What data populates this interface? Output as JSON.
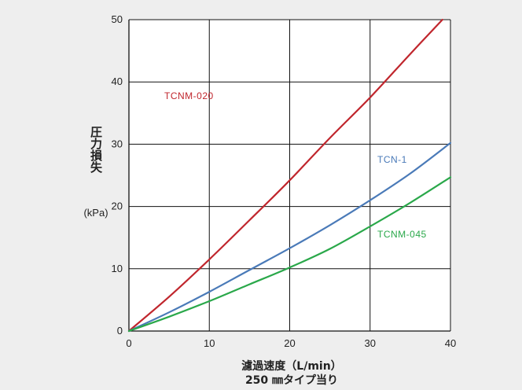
{
  "chart_data": {
    "type": "line",
    "xlabel": "濾過速度（L/min）",
    "xlabel_sub": "250 ㎜タイプ当り",
    "ylabel": "圧力損失",
    "ylabel_unit": "(kPa)",
    "xlim": [
      0,
      40
    ],
    "ylim": [
      0,
      50
    ],
    "xticks": [
      0,
      10,
      20,
      30,
      40
    ],
    "yticks": [
      0,
      10,
      20,
      30,
      40,
      50
    ],
    "grid": true,
    "series": [
      {
        "name": "TCNM-020",
        "color": "#c0262d",
        "points": [
          [
            0,
            0
          ],
          [
            5,
            5.5
          ],
          [
            10,
            11.5
          ],
          [
            15,
            17.8
          ],
          [
            20,
            24.2
          ],
          [
            25,
            31
          ],
          [
            30,
            37.5
          ],
          [
            35,
            44.5
          ],
          [
            39,
            50
          ]
        ]
      },
      {
        "name": "TCN-1",
        "color": "#4a7ab8",
        "points": [
          [
            0,
            0
          ],
          [
            5,
            3
          ],
          [
            10,
            6.3
          ],
          [
            15,
            9.8
          ],
          [
            20,
            13.3
          ],
          [
            25,
            17
          ],
          [
            30,
            21
          ],
          [
            35,
            25.3
          ],
          [
            40,
            30.2
          ]
        ]
      },
      {
        "name": "TCNM-045",
        "color": "#2aa84a",
        "points": [
          [
            0,
            0
          ],
          [
            5,
            2.3
          ],
          [
            10,
            4.8
          ],
          [
            15,
            7.5
          ],
          [
            20,
            10.2
          ],
          [
            25,
            13.2
          ],
          [
            30,
            16.8
          ],
          [
            35,
            20.6
          ],
          [
            40,
            24.7
          ]
        ]
      }
    ]
  }
}
